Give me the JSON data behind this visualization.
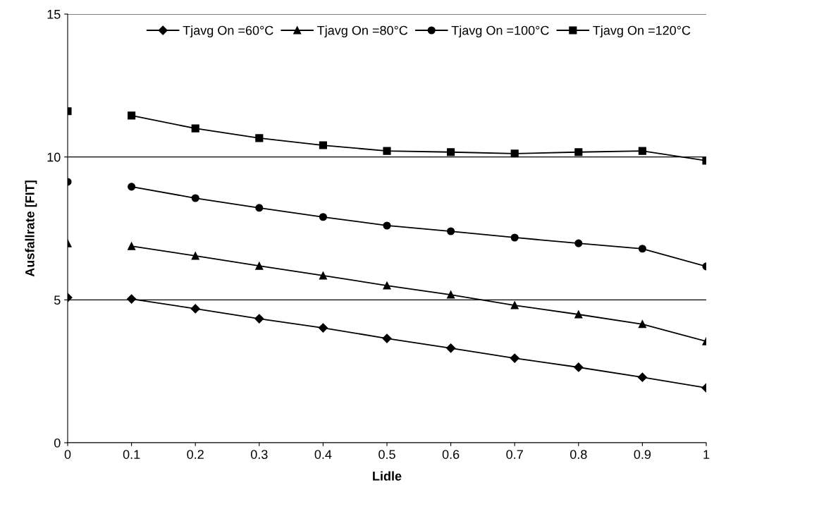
{
  "chart_data": {
    "type": "line",
    "xlabel": "Lidle",
    "ylabel": "Ausfallrate [FIT]",
    "x": [
      0,
      0.05,
      0.1,
      0.2,
      0.3,
      0.4,
      0.5,
      0.6,
      0.7,
      0.8,
      0.9,
      1
    ],
    "series": [
      {
        "name": "Tjavg On =60°C",
        "color": "#000000",
        "marker": "diamond",
        "values": [
          5.08,
          null,
          5.03,
          4.69,
          4.34,
          4.02,
          3.65,
          3.31,
          2.96,
          2.64,
          2.29,
          1.92
        ]
      },
      {
        "name": "Tjavg On =80°C",
        "color": "#000000",
        "marker": "triangle",
        "values": [
          6.98,
          null,
          6.88,
          6.54,
          6.19,
          5.85,
          5.5,
          5.18,
          4.81,
          4.49,
          4.15,
          3.55
        ]
      },
      {
        "name": "Tjavg On =100°C",
        "color": "#000000",
        "marker": "circle",
        "values": [
          9.13,
          null,
          8.96,
          8.56,
          8.22,
          7.9,
          7.6,
          7.4,
          7.18,
          6.98,
          6.79,
          6.17
        ]
      },
      {
        "name": "Tjavg On =120°C",
        "color": "#000000",
        "marker": "square",
        "values": [
          11.6,
          null,
          11.45,
          11.0,
          10.66,
          10.41,
          10.21,
          10.17,
          10.12,
          10.17,
          10.21,
          9.87
        ]
      }
    ],
    "xlim": [
      0,
      1
    ],
    "xticks": [
      0,
      0.1,
      0.2,
      0.3,
      0.4,
      0.5,
      0.6,
      0.7,
      0.8,
      0.9,
      1
    ],
    "ylim": [
      0,
      15
    ],
    "yticks": [
      0,
      5,
      10,
      15
    ],
    "grid": "y",
    "legend": "top",
    "line_style": "solid"
  }
}
